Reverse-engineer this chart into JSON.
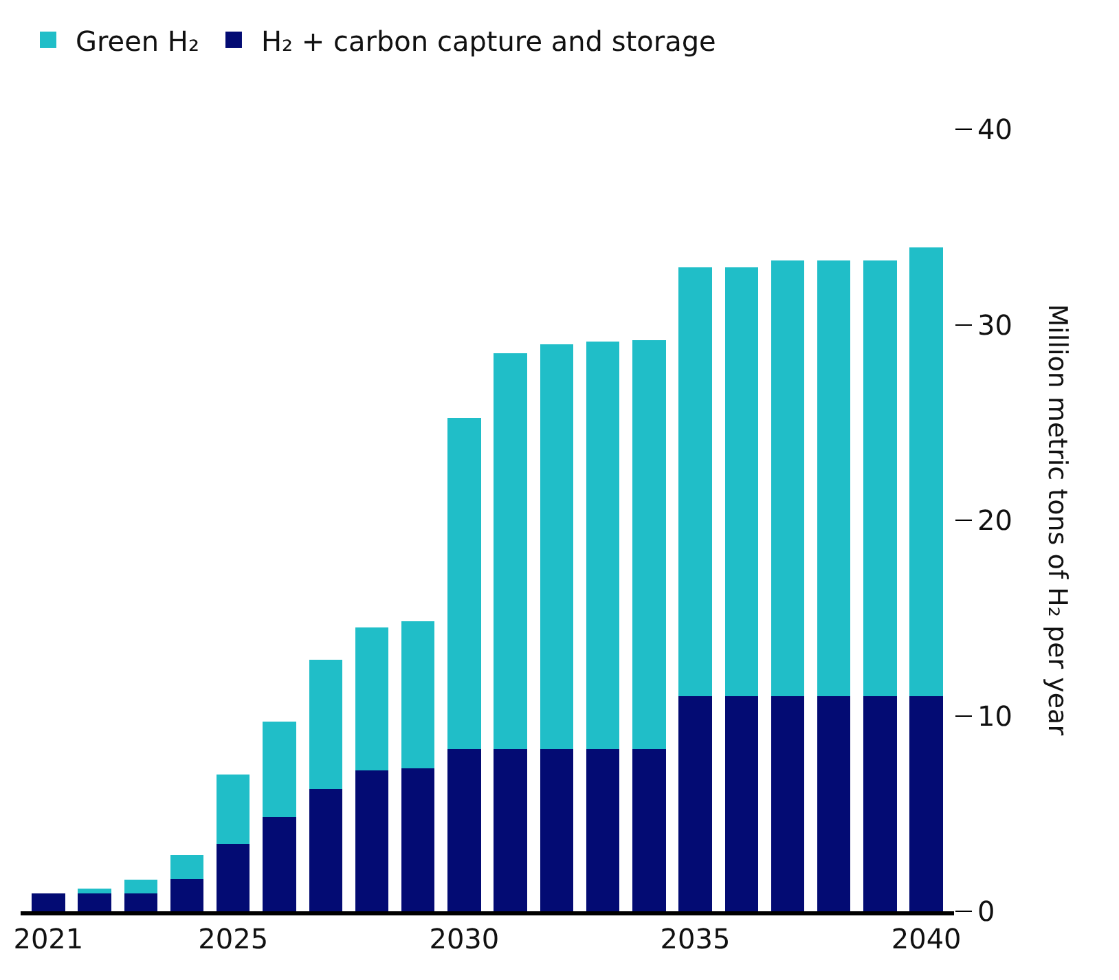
{
  "chart_data": {
    "type": "bar",
    "stacked": true,
    "ylabel": "Million metric tons of H₂ per year",
    "categories": [
      "2021",
      null,
      null,
      null,
      "2025",
      null,
      null,
      null,
      null,
      "2030",
      null,
      null,
      null,
      null,
      "2035",
      null,
      null,
      null,
      null,
      "2040"
    ],
    "series": [
      {
        "name": "H₂ + carbon capture and storage",
        "color": "#030b73",
        "values": [
          0.9,
          0.9,
          0.9,
          1.65,
          3.45,
          4.8,
          6.25,
          7.2,
          7.3,
          8.3,
          8.3,
          8.3,
          8.3,
          8.3,
          11.0,
          11.0,
          11.0,
          11.0,
          11.0,
          11.0
        ]
      },
      {
        "name": "Green H₂",
        "color": "#20bec8",
        "values": [
          0,
          0.25,
          0.7,
          1.25,
          3.55,
          4.9,
          6.6,
          7.3,
          7.55,
          16.95,
          20.25,
          20.7,
          20.85,
          20.9,
          21.95,
          21.95,
          22.3,
          22.3,
          22.3,
          22.95
        ]
      }
    ],
    "ylim": [
      0,
      40
    ],
    "yticks": [
      0,
      10,
      20,
      30,
      40
    ],
    "legend": "top left"
  }
}
